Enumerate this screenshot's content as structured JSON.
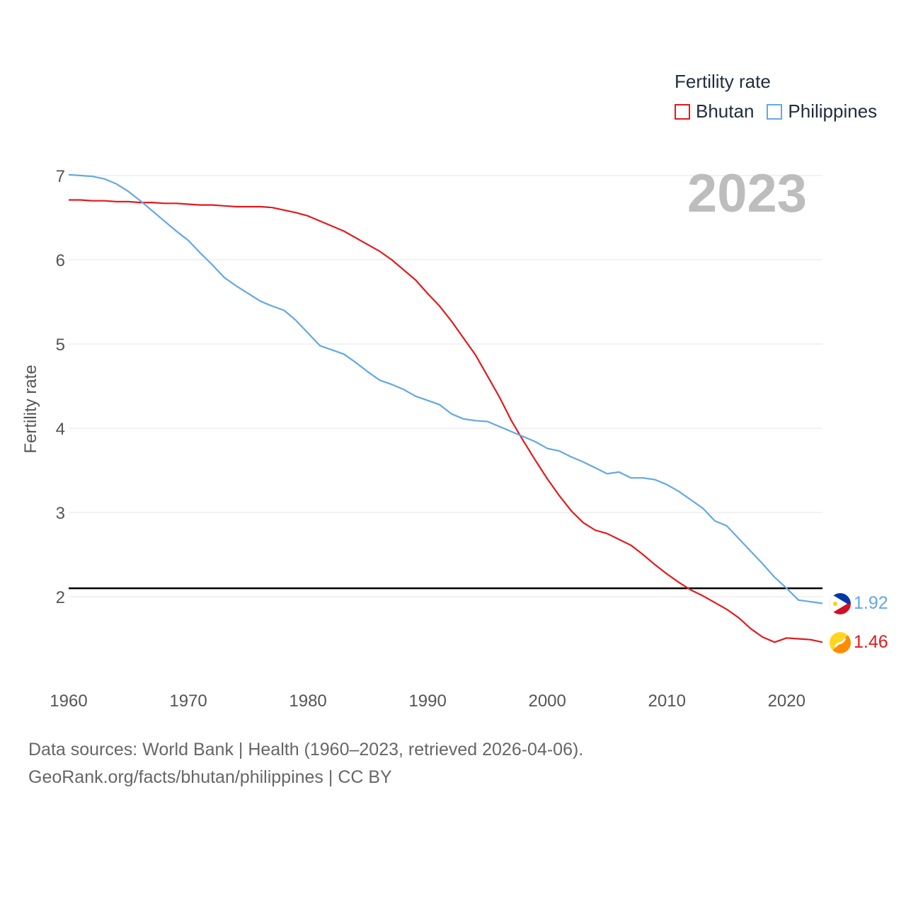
{
  "chart_data": {
    "type": "line",
    "title": "Fertility rate",
    "year_label": "2023",
    "ylabel": "Fertility rate",
    "xlabel": "",
    "xlim": [
      1960,
      2023
    ],
    "ylim": [
      1,
      7.3
    ],
    "x_ticks": [
      1960,
      1970,
      1980,
      1990,
      2000,
      2010,
      2020
    ],
    "y_ticks": [
      2,
      3,
      4,
      5,
      6,
      7
    ],
    "reference_line": 2.1,
    "legend": [
      "Bhutan",
      "Philippines"
    ],
    "x": [
      1960,
      1961,
      1962,
      1963,
      1964,
      1965,
      1966,
      1967,
      1968,
      1969,
      1970,
      1971,
      1972,
      1973,
      1974,
      1975,
      1976,
      1977,
      1978,
      1979,
      1980,
      1981,
      1982,
      1983,
      1984,
      1985,
      1986,
      1987,
      1988,
      1989,
      1990,
      1991,
      1992,
      1993,
      1994,
      1995,
      1996,
      1997,
      1998,
      1999,
      2000,
      2001,
      2002,
      2003,
      2004,
      2005,
      2006,
      2007,
      2008,
      2009,
      2010,
      2011,
      2012,
      2013,
      2014,
      2015,
      2016,
      2017,
      2018,
      2019,
      2020,
      2021,
      2022,
      2023
    ],
    "series": [
      {
        "name": "Bhutan",
        "color": "#e31a1c",
        "end_label": "1.46",
        "values": [
          6.71,
          6.71,
          6.7,
          6.7,
          6.69,
          6.69,
          6.68,
          6.68,
          6.67,
          6.67,
          6.66,
          6.65,
          6.65,
          6.64,
          6.63,
          6.63,
          6.63,
          6.62,
          6.59,
          6.56,
          6.52,
          6.46,
          6.4,
          6.34,
          6.26,
          6.18,
          6.1,
          6.0,
          5.88,
          5.76,
          5.6,
          5.45,
          5.27,
          5.07,
          4.87,
          4.62,
          4.37,
          4.09,
          3.85,
          3.62,
          3.4,
          3.2,
          3.02,
          2.88,
          2.79,
          2.75,
          2.68,
          2.61,
          2.5,
          2.38,
          2.27,
          2.17,
          2.08,
          2.01,
          1.93,
          1.85,
          1.75,
          1.62,
          1.52,
          1.46,
          1.51,
          1.5,
          1.49,
          1.46
        ]
      },
      {
        "name": "Philippines",
        "color": "#63a8e6",
        "end_label": "1.92",
        "values": [
          7.01,
          7.0,
          6.99,
          6.96,
          6.9,
          6.81,
          6.7,
          6.58,
          6.46,
          6.34,
          6.23,
          6.08,
          5.94,
          5.79,
          5.69,
          5.6,
          5.51,
          5.45,
          5.4,
          5.28,
          5.13,
          4.98,
          4.93,
          4.88,
          4.78,
          4.67,
          4.57,
          4.52,
          4.46,
          4.38,
          4.33,
          4.28,
          4.17,
          4.11,
          4.09,
          4.08,
          4.02,
          3.96,
          3.9,
          3.84,
          3.76,
          3.73,
          3.66,
          3.6,
          3.53,
          3.46,
          3.48,
          3.41,
          3.41,
          3.39,
          3.33,
          3.25,
          3.15,
          3.05,
          2.9,
          2.84,
          2.69,
          2.54,
          2.39,
          2.23,
          2.1,
          1.96,
          1.94,
          1.92
        ]
      }
    ]
  },
  "footer": {
    "line1": "Data sources: World Bank | Health (1960–2023, retrieved 2026-04-06).",
    "line2": "GeoRank.org/facts/bhutan/philippines | CC BY"
  }
}
